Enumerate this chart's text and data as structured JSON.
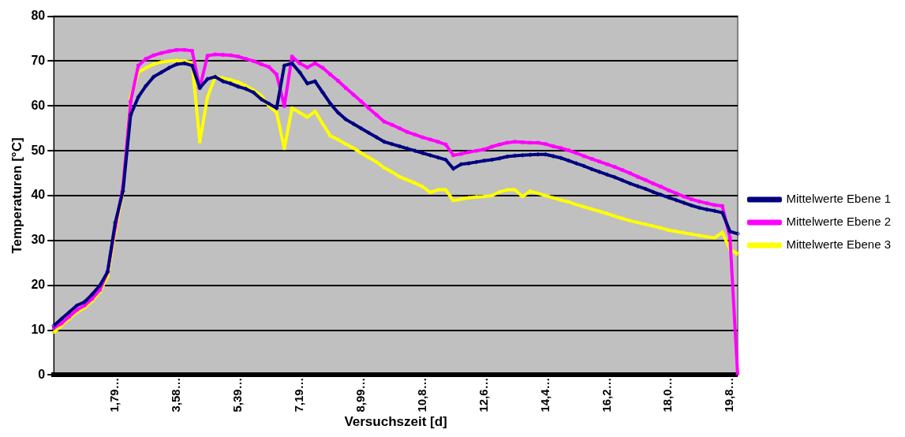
{
  "chart_data": {
    "type": "line",
    "xlabel": "Versuchszeit [d]",
    "ylabel": "Temperaturen [°C]",
    "categories": [
      null,
      null,
      null,
      null,
      null,
      null,
      null,
      null,
      "1,79…",
      null,
      null,
      null,
      null,
      null,
      null,
      null,
      "3,58…",
      null,
      null,
      null,
      null,
      null,
      null,
      null,
      "5,39…",
      null,
      null,
      null,
      null,
      null,
      null,
      null,
      "7,19…",
      null,
      null,
      null,
      null,
      null,
      null,
      null,
      "8,99…",
      null,
      null,
      null,
      null,
      null,
      null,
      null,
      "10,8…",
      null,
      null,
      null,
      null,
      null,
      null,
      null,
      "12,6…",
      null,
      null,
      null,
      null,
      null,
      null,
      null,
      "14,4…",
      null,
      null,
      null,
      null,
      null,
      null,
      null,
      "16,2…",
      null,
      null,
      null,
      null,
      null,
      null,
      null,
      "18,0…",
      null,
      null,
      null,
      null,
      null,
      null,
      null,
      "19,8…",
      null
    ],
    "ylim": [
      0,
      80
    ],
    "yticks": [
      0,
      10,
      20,
      30,
      40,
      50,
      60,
      70,
      80
    ],
    "grid": "y",
    "legend": "right",
    "line_style": "solid",
    "series": [
      {
        "name": "Mittelwerte Ebene 1",
        "color": "#000080",
        "marker": "diamond",
        "values": [
          11,
          12.5,
          14,
          15.5,
          16.3,
          18,
          20,
          23,
          34,
          41,
          58,
          62,
          64.5,
          66.5,
          67.5,
          68.5,
          69.3,
          69.5,
          69,
          64,
          66,
          66.5,
          65.5,
          65,
          64.3,
          63.8,
          63,
          61.5,
          60.5,
          59.5,
          69,
          69.5,
          67.5,
          65,
          65.5,
          63,
          60.5,
          58.5,
          57,
          56,
          55,
          54,
          53,
          52,
          51.5,
          51,
          50.5,
          50,
          49.5,
          49,
          48.5,
          48,
          46,
          47,
          47.2,
          47.5,
          47.8,
          48,
          48.3,
          48.7,
          48.9,
          49,
          49.1,
          49.2,
          49.2,
          48.8,
          48.4,
          47.8,
          47.2,
          46.6,
          45.9,
          45.3,
          44.7,
          44.1,
          43.4,
          42.7,
          42.1,
          41.5,
          40.8,
          40.2,
          39.6,
          39,
          38.4,
          37.8,
          37.3,
          36.9,
          36.6,
          36.2,
          32,
          31.5
        ]
      },
      {
        "name": "Mittelwerte Ebene 2",
        "color": "#ff00ff",
        "marker": "square",
        "values": [
          10.5,
          11.5,
          13,
          14.5,
          15.5,
          17,
          19,
          23,
          33,
          42,
          61,
          69,
          70.5,
          71.3,
          71.8,
          72.2,
          72.5,
          72.5,
          72.3,
          64,
          71.2,
          71.5,
          71.4,
          71.3,
          71,
          70.5,
          70,
          69.3,
          68.7,
          67,
          60,
          71,
          69.5,
          68.6,
          69.5,
          68.5,
          67,
          65.6,
          64,
          62.5,
          61,
          59.5,
          58,
          56.5,
          55.8,
          55,
          54.2,
          53.6,
          53,
          52.5,
          52,
          51.4,
          49,
          49.3,
          49.7,
          50,
          50.3,
          50.9,
          51.4,
          51.8,
          52,
          51.9,
          51.8,
          51.8,
          51.5,
          51,
          50.6,
          50.1,
          49.5,
          48.8,
          48.2,
          47.6,
          47,
          46.4,
          45.7,
          45,
          44.2,
          43.5,
          42.7,
          42,
          41.2,
          40.5,
          39.8,
          39.2,
          38.7,
          38.3,
          37.9,
          37.7,
          30.6,
          0
        ]
      },
      {
        "name": "Mittelwerte Ebene 3",
        "color": "#ffff00",
        "marker": "triangle",
        "values": [
          9.5,
          11,
          12.5,
          14,
          15,
          16.5,
          18.5,
          22,
          32,
          41,
          62,
          67.5,
          68.5,
          69.3,
          69.8,
          70,
          70.1,
          70,
          69.6,
          52,
          62,
          66.5,
          66.2,
          65.8,
          65.3,
          64.5,
          63.5,
          62.3,
          60,
          58.5,
          50.5,
          59.5,
          58.5,
          57.5,
          58.8,
          56,
          53.3,
          52.5,
          51.5,
          50.6,
          49.5,
          48.5,
          47.5,
          46.2,
          45.3,
          44.2,
          43.5,
          42.8,
          42,
          40.7,
          41.3,
          41.3,
          38.9,
          39.2,
          39.5,
          39.7,
          39.8,
          40,
          40.8,
          41.3,
          41.3,
          39.8,
          41,
          40.5,
          40,
          39.5,
          39,
          38.6,
          38,
          37.5,
          37,
          36.5,
          36,
          35.4,
          34.9,
          34.4,
          34,
          33.6,
          33.2,
          32.8,
          32.3,
          32,
          31.7,
          31.4,
          31.1,
          30.8,
          30.6,
          31.8,
          28,
          27
        ]
      }
    ]
  }
}
